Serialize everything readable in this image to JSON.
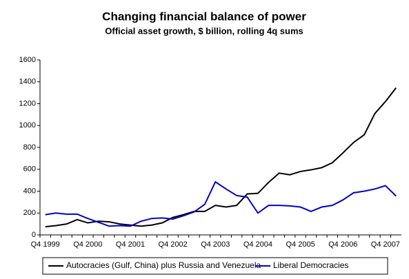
{
  "chart_data": {
    "type": "line",
    "title": "Changing financial balance of power",
    "subtitle": "Official asset growth, $ billion, rolling 4q sums",
    "categories": [
      "Q4 1999",
      null,
      null,
      null,
      "Q4 2000",
      null,
      null,
      null,
      "Q4 2001",
      null,
      null,
      null,
      "Q4 2002",
      null,
      null,
      null,
      "Q4 2003",
      null,
      null,
      null,
      "Q4 2004",
      null,
      null,
      null,
      "Q4 2005",
      null,
      null,
      null,
      "Q4 2006",
      null,
      null,
      null,
      "Q4 2007",
      null
    ],
    "series": [
      {
        "name": "Autocracies (Gulf, China) plus Russia and Venezuela",
        "color": "#000000",
        "values": [
          75,
          85,
          100,
          140,
          110,
          125,
          120,
          100,
          90,
          80,
          90,
          110,
          160,
          185,
          215,
          215,
          270,
          255,
          270,
          375,
          380,
          480,
          565,
          550,
          580,
          595,
          615,
          660,
          750,
          845,
          915,
          1110,
          1220,
          1345
        ]
      },
      {
        "name": "Liberal Democracies",
        "color": "#0000cc",
        "values": [
          185,
          200,
          190,
          190,
          150,
          115,
          80,
          85,
          80,
          125,
          150,
          155,
          145,
          175,
          210,
          280,
          485,
          420,
          360,
          345,
          200,
          270,
          270,
          265,
          255,
          215,
          255,
          270,
          320,
          385,
          400,
          420,
          450,
          355
        ]
      }
    ],
    "ylim": [
      0,
      1600
    ],
    "yticks": [
      0,
      200,
      400,
      600,
      800,
      1000,
      1200,
      1400,
      1600
    ],
    "grid": false,
    "legend": "bottom"
  }
}
